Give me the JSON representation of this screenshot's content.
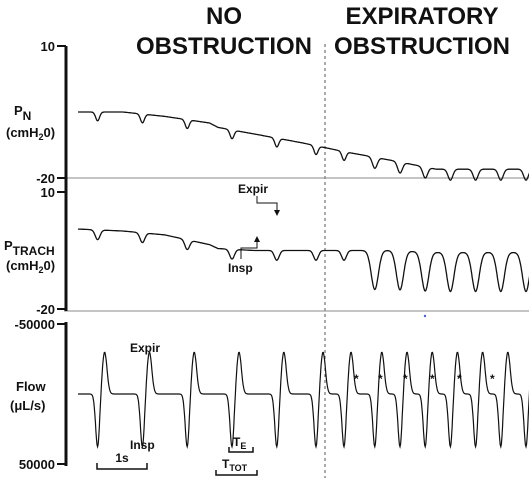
{
  "headers": {
    "left": [
      "NO",
      "OBSTRUCTION"
    ],
    "right": [
      "EXPIRATORY",
      "OBSTRUCTION"
    ]
  },
  "panels": {
    "pn": {
      "ylabel_main": "P",
      "ylabel_sub": "N",
      "unit": "(cmH",
      "unit_sub": "2",
      "unit_end": "0)",
      "ticks": [
        "10",
        "-20"
      ]
    },
    "ptrach": {
      "ylabel_main": "P",
      "ylabel_sub": "TRACH",
      "unit": "(cmH",
      "unit_sub": "2",
      "unit_end": "0)",
      "ticks": [
        "10",
        "-20"
      ],
      "annotations": {
        "expir": "Expir",
        "insp": "Insp"
      }
    },
    "flow": {
      "ylabel": "Flow",
      "unit": "(μL/s)",
      "ticks": [
        "-50000",
        "50000"
      ],
      "annotations": {
        "expir": "Expir",
        "insp": "Insp",
        "star": "*"
      }
    }
  },
  "scale_bars": {
    "one_second": "1s",
    "te_main": "T",
    "te_sub": "E",
    "ttot_main": "T",
    "ttot_sub": "TOT"
  },
  "colors": {
    "trace": "#111111",
    "axis": "#111111",
    "divider": "#555555",
    "baseline": "#888888"
  },
  "chart_data": [
    {
      "type": "line",
      "panel": "P_N",
      "x_unit": "s",
      "x": [
        0.0,
        1.6,
        3.1,
        4.7,
        5.0,
        6.3,
        8.0,
        9.5,
        11.2,
        12.8
      ],
      "y": [
        -5.0,
        -5.0,
        -6.0,
        -7.5,
        -8.5,
        -10.0,
        -12.0,
        -14.0,
        -16.0,
        -18.0
      ],
      "ylim": [
        -20,
        10
      ]
    },
    {
      "type": "line",
      "panel": "P_TRACH",
      "x_unit": "s",
      "x": [
        0.0,
        1.6,
        3.1,
        4.7,
        5.0,
        6.3,
        8.0,
        9.5,
        11.2,
        12.8
      ],
      "y": [
        0.5,
        0.0,
        -1.0,
        -3.5,
        -4.5,
        -5.0,
        -5.0,
        -5.0,
        -5.0,
        -5.5
      ],
      "ylim": [
        -20,
        10
      ]
    },
    {
      "type": "line",
      "panel": "Flow",
      "x_unit": "s",
      "x": [
        0.0,
        1.6,
        3.1,
        4.7,
        5.0,
        6.3,
        8.0,
        9.5,
        11.2,
        12.8
      ],
      "y": [
        0,
        0,
        0,
        0,
        0,
        0,
        0,
        0,
        0,
        0
      ],
      "ylim": [
        -50000,
        50000
      ]
    }
  ]
}
